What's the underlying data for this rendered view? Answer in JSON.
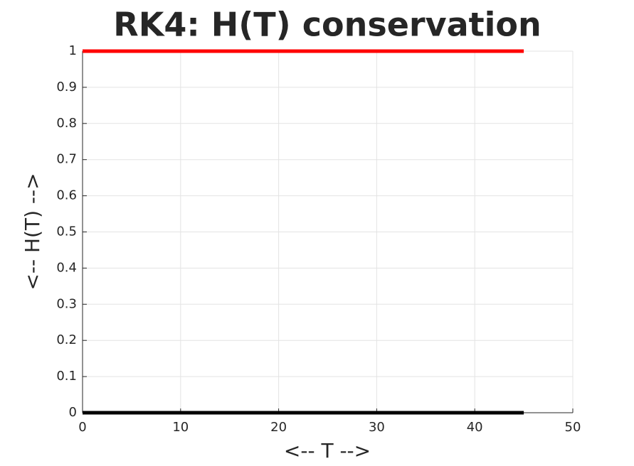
{
  "chart_data": {
    "type": "line",
    "title": "RK4: H(T) conservation",
    "x_label": "<-- T -->",
    "y_label": "<-- H(T) -->",
    "x": [
      0,
      45
    ],
    "series": [
      {
        "color": "#ff0000",
        "values": [
          1,
          1
        ]
      },
      {
        "color": "#000000",
        "values": [
          0,
          0
        ]
      }
    ],
    "xlim": [
      0,
      50
    ],
    "xticks": [
      0,
      10,
      20,
      30,
      40,
      50
    ],
    "ylim": [
      0,
      1
    ],
    "yticks": [
      0,
      0.1,
      0.2,
      0.3,
      0.4,
      0.5,
      0.6,
      0.7,
      0.8,
      0.9,
      1
    ],
    "grid": true
  }
}
